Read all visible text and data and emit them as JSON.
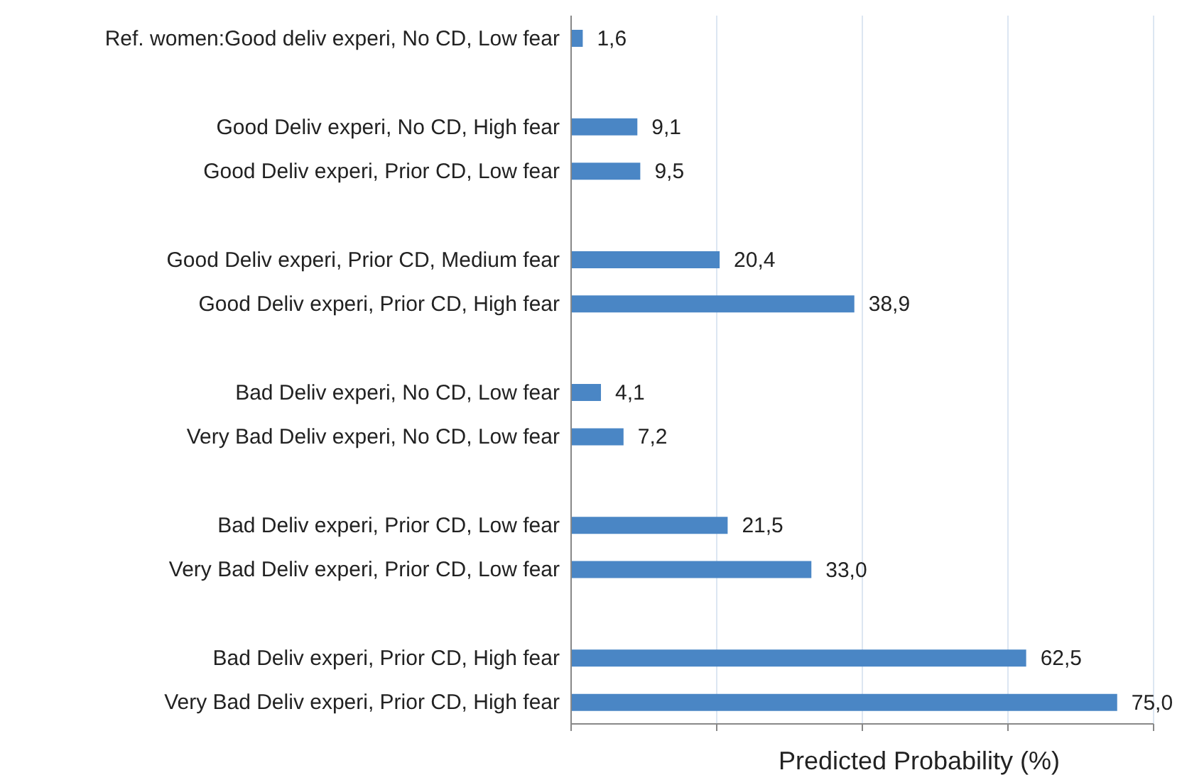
{
  "chart_data": {
    "type": "bar",
    "orientation": "horizontal",
    "categories": [
      "Ref. women:Good deliv experi, No CD, Low fear",
      null,
      "Good Deliv experi, No CD, High fear",
      "Good Deliv experi, Prior CD, Low fear",
      null,
      "Good Deliv experi, Prior CD, Medium fear",
      "Good Deliv experi, Prior CD, High fear",
      null,
      "Bad Deliv experi, No CD, Low fear",
      "Very Bad Deliv experi, No CD, Low fear",
      null,
      "Bad Deliv experi, Prior CD, Low fear",
      "Very Bad Deliv experi, Prior CD, Low fear",
      null,
      "Bad Deliv experi, Prior CD, High fear",
      "Very Bad Deliv experi, Prior CD, High fear"
    ],
    "values": [
      1.6,
      null,
      9.1,
      9.5,
      null,
      20.4,
      38.9,
      null,
      4.1,
      7.2,
      null,
      21.5,
      33.0,
      null,
      62.5,
      75.0
    ],
    "value_labels": [
      "1,6",
      null,
      "9,1",
      "9,5",
      null,
      "20,4",
      "38,9",
      null,
      "4,1",
      "7,2",
      null,
      "21,5",
      "33,0",
      null,
      "62,5",
      "75,0"
    ],
    "color": "#4a86c5",
    "xlabel": "Predicted Probability (%)",
    "xlim": [
      0,
      80
    ],
    "xticks": [
      {
        "value": 0,
        "label": null
      },
      {
        "value": 20,
        "label": null
      },
      {
        "value": 40,
        "label": null
      },
      {
        "value": 60,
        "label": null
      },
      {
        "value": 80,
        "label": null
      }
    ],
    "tick_labels": "y",
    "grid": "x"
  }
}
